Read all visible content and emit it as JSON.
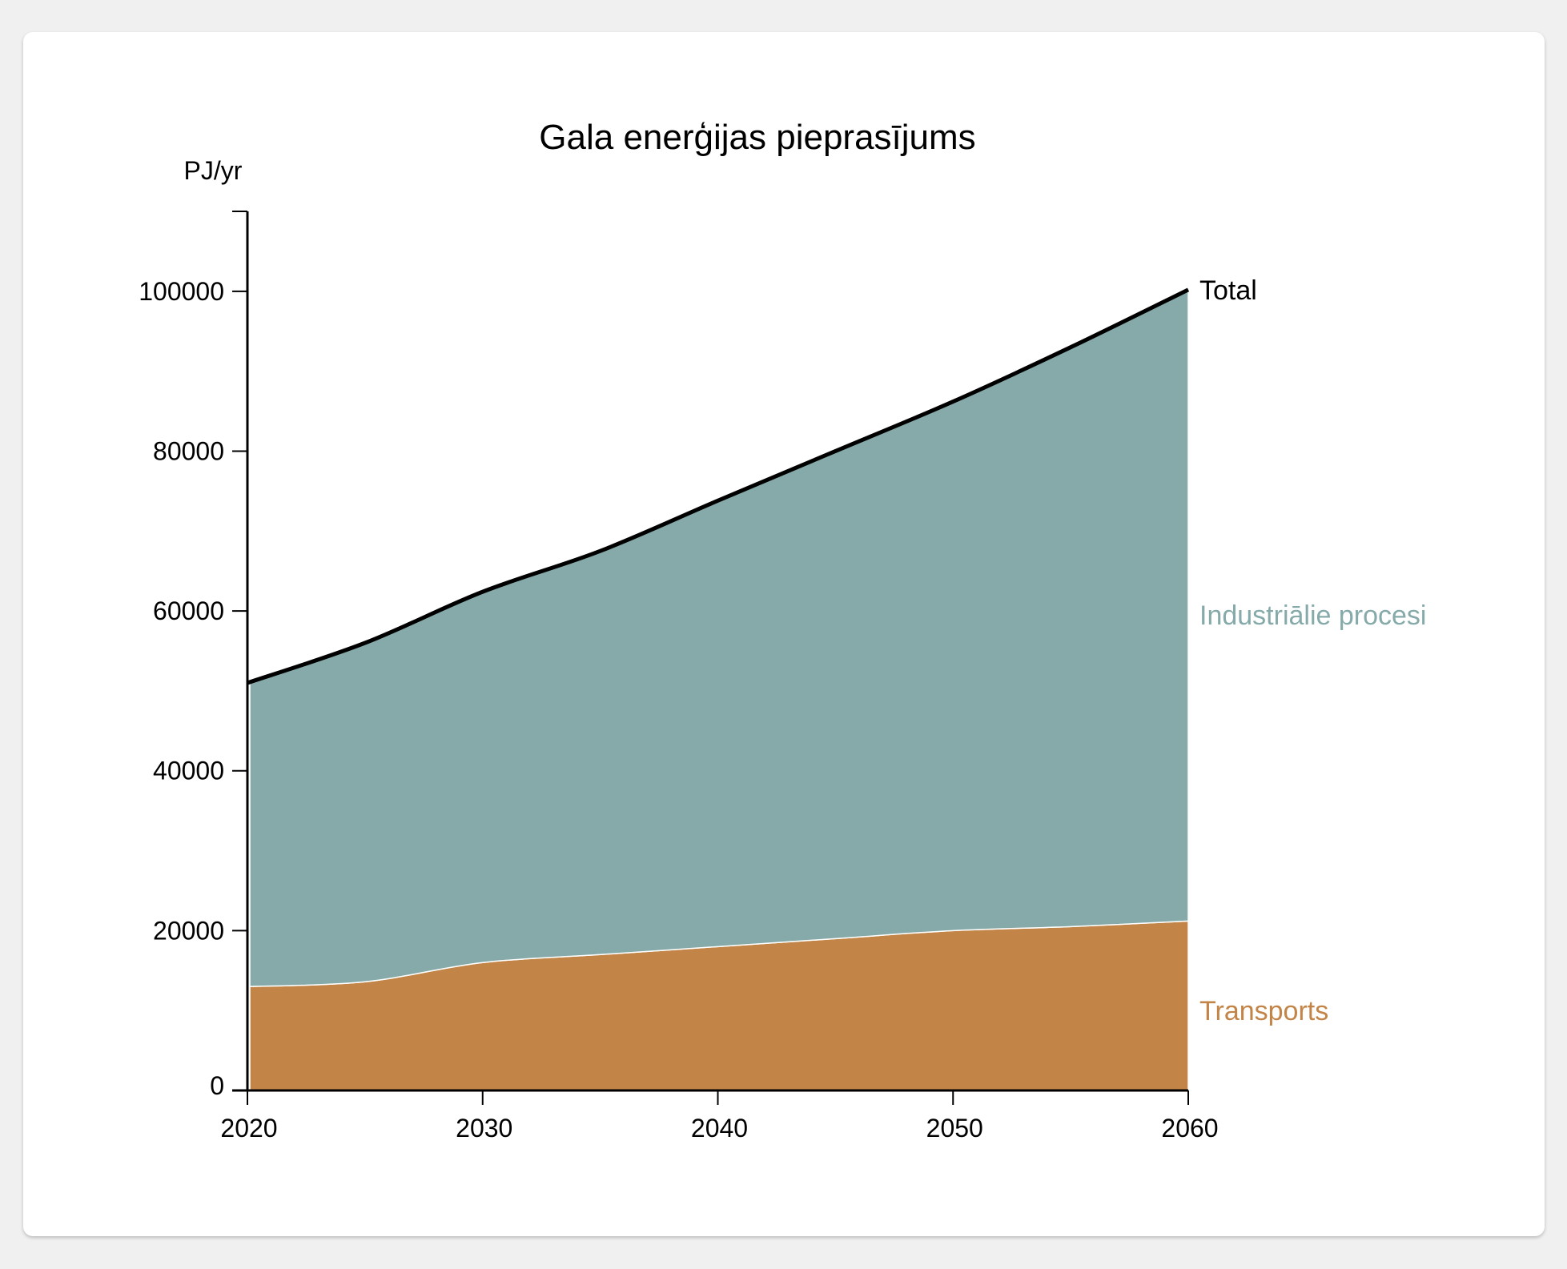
{
  "chart_data": {
    "type": "area",
    "title": "Gala enerģijas pieprasījums",
    "ylabel": "PJ/yr",
    "xlabel": "",
    "x": [
      2020,
      2025,
      2030,
      2035,
      2040,
      2045,
      2050,
      2055,
      2060
    ],
    "xlim": [
      2020,
      2060
    ],
    "ylim": [
      0,
      110000
    ],
    "x_ticks": [
      "2020",
      "2030",
      "2040",
      "2050",
      "2060"
    ],
    "y_ticks": [
      "0",
      "20000",
      "40000",
      "60000",
      "80000",
      "100000"
    ],
    "stacked": true,
    "series": [
      {
        "name": "Transports",
        "color": "#c28447",
        "values": [
          13000,
          13600,
          16000,
          17000,
          18000,
          19000,
          20000,
          20500,
          21200
        ]
      },
      {
        "name": "Industriālie procesi",
        "color": "#85aaa9",
        "values": [
          38000,
          42400,
          46400,
          50500,
          55800,
          61000,
          66200,
          72500,
          79000
        ]
      }
    ],
    "total": {
      "name": "Total",
      "color": "#000000",
      "values": [
        51000,
        56000,
        62400,
        67500,
        73800,
        80000,
        86200,
        93000,
        100200
      ]
    },
    "grid": false,
    "legend": "inline-right"
  }
}
